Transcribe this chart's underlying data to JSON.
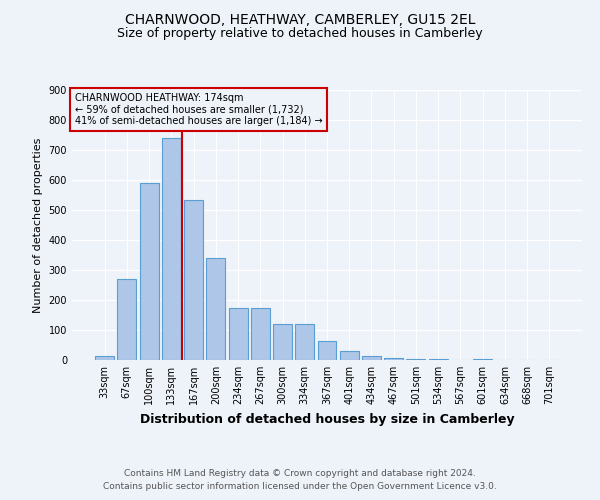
{
  "title": "CHARNWOOD, HEATHWAY, CAMBERLEY, GU15 2EL",
  "subtitle": "Size of property relative to detached houses in Camberley",
  "xlabel": "Distribution of detached houses by size in Camberley",
  "ylabel": "Number of detached properties",
  "footnote1": "Contains HM Land Registry data © Crown copyright and database right 2024.",
  "footnote2": "Contains public sector information licensed under the Open Government Licence v3.0.",
  "bar_labels": [
    "33sqm",
    "67sqm",
    "100sqm",
    "133sqm",
    "167sqm",
    "200sqm",
    "234sqm",
    "267sqm",
    "300sqm",
    "334sqm",
    "367sqm",
    "401sqm",
    "434sqm",
    "467sqm",
    "501sqm",
    "534sqm",
    "567sqm",
    "601sqm",
    "634sqm",
    "668sqm",
    "701sqm"
  ],
  "bar_values": [
    15,
    270,
    590,
    740,
    535,
    340,
    175,
    175,
    120,
    120,
    65,
    30,
    15,
    8,
    5,
    2,
    0,
    5,
    0,
    0,
    0
  ],
  "bar_color": "#aec6e8",
  "bar_edge_color": "#5a9fd4",
  "annotation_box_text": "CHARNWOOD HEATHWAY: 174sqm\n← 59% of detached houses are smaller (1,732)\n41% of semi-detached houses are larger (1,184) →",
  "annotation_box_color": "#cc0000",
  "vline_x_index": 4,
  "vline_color": "#cc0000",
  "ylim": [
    0,
    900
  ],
  "yticks": [
    0,
    100,
    200,
    300,
    400,
    500,
    600,
    700,
    800,
    900
  ],
  "background_color": "#eef2f9",
  "grid_color": "#ffffff",
  "title_fontsize": 10,
  "subtitle_fontsize": 9,
  "xlabel_fontsize": 9,
  "ylabel_fontsize": 8,
  "tick_fontsize": 7,
  "annotation_fontsize": 7,
  "footnote_fontsize": 6.5
}
